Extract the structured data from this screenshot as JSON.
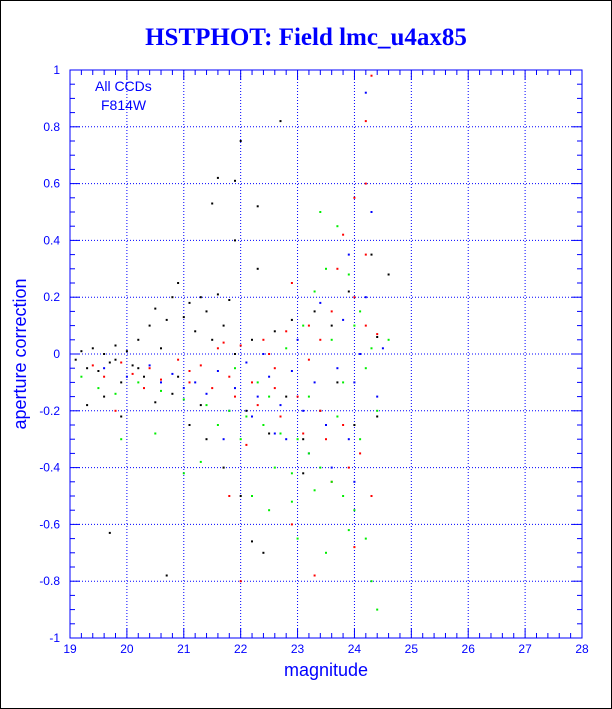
{
  "chart_data": {
    "type": "scatter",
    "title": "HSTPHOT: Field lmc_u4ax85",
    "xlabel": "magnitude",
    "ylabel": "aperture correction",
    "xlim": [
      19,
      28
    ],
    "ylim": [
      -1,
      1
    ],
    "x_ticks": [
      "19",
      "20",
      "21",
      "22",
      "23",
      "24",
      "25",
      "26",
      "27",
      "28"
    ],
    "y_ticks": [
      "-1",
      "-0.8",
      "-0.6",
      "-0.4",
      "-0.2",
      "0",
      "0.2",
      "0.4",
      "0.6",
      "0.8",
      "1"
    ],
    "x_tick_values": [
      19,
      20,
      21,
      22,
      23,
      24,
      25,
      26,
      27,
      28
    ],
    "y_tick_values": [
      -1,
      -0.8,
      -0.6,
      -0.4,
      -0.2,
      0,
      0.2,
      0.4,
      0.6,
      0.8,
      1
    ],
    "grid": true,
    "annotations": [
      "All CCDs",
      "F814W"
    ],
    "colors": {
      "axes": "#0000ff",
      "grid": "#0000ff",
      "black_series": "#000000",
      "red_series": "#ff0000",
      "blue_series": "#0000ff",
      "green_series": "#00ee00"
    },
    "series": [
      {
        "color": "#000000",
        "points": [
          [
            19.1,
            -0.02
          ],
          [
            19.2,
            0.01
          ],
          [
            19.3,
            -0.05
          ],
          [
            19.4,
            0.02
          ],
          [
            19.5,
            -0.06
          ],
          [
            19.6,
            0.0
          ],
          [
            19.7,
            -0.03
          ],
          [
            19.8,
            0.03
          ],
          [
            19.9,
            -0.1
          ],
          [
            20.0,
            0.01
          ],
          [
            20.1,
            -0.04
          ],
          [
            20.2,
            0.05
          ],
          [
            20.3,
            -0.08
          ],
          [
            20.4,
            0.1
          ],
          [
            20.5,
            0.16
          ],
          [
            20.6,
            0.02
          ],
          [
            20.7,
            0.12
          ],
          [
            20.8,
            0.2
          ],
          [
            20.9,
            0.25
          ],
          [
            21.0,
            0.13
          ],
          [
            21.1,
            0.18
          ],
          [
            21.2,
            0.08
          ],
          [
            21.3,
            0.2
          ],
          [
            21.4,
            0.15
          ],
          [
            21.5,
            0.05
          ],
          [
            21.6,
            0.21
          ],
          [
            21.7,
            0.1
          ],
          [
            21.8,
            0.19
          ],
          [
            21.9,
            0.0
          ],
          [
            19.3,
            -0.18
          ],
          [
            19.6,
            -0.15
          ],
          [
            19.9,
            -0.22
          ],
          [
            20.2,
            -0.05
          ],
          [
            20.5,
            -0.17
          ],
          [
            20.8,
            -0.14
          ],
          [
            21.1,
            -0.25
          ],
          [
            21.4,
            -0.3
          ],
          [
            21.7,
            -0.4
          ],
          [
            22.0,
            -0.5
          ],
          [
            22.2,
            -0.66
          ],
          [
            22.4,
            -0.7
          ],
          [
            19.7,
            -0.63
          ],
          [
            20.7,
            -0.78
          ],
          [
            21.5,
            0.53
          ],
          [
            21.6,
            0.62
          ],
          [
            21.9,
            0.61
          ],
          [
            22.0,
            0.75
          ],
          [
            22.3,
            0.52
          ],
          [
            22.7,
            0.82
          ],
          [
            21.9,
            0.4
          ],
          [
            22.3,
            0.3
          ],
          [
            22.6,
            0.08
          ],
          [
            22.9,
            0.12
          ],
          [
            23.3,
            0.15
          ],
          [
            23.6,
            0.1
          ],
          [
            23.9,
            0.22
          ],
          [
            22.1,
            -0.2
          ],
          [
            22.5,
            -0.28
          ],
          [
            22.8,
            -0.15
          ],
          [
            23.1,
            -0.3
          ],
          [
            23.4,
            -0.2
          ],
          [
            23.7,
            -0.1
          ],
          [
            24.0,
            -0.25
          ],
          [
            24.4,
            0.06
          ],
          [
            24.4,
            -0.22
          ],
          [
            24.6,
            0.28
          ],
          [
            24.3,
            0.35
          ],
          [
            23.1,
            -0.42
          ],
          [
            21.3,
            -0.18
          ],
          [
            22.2,
            0.05
          ],
          [
            20.9,
            -0.08
          ],
          [
            19.8,
            -0.02
          ]
        ]
      },
      {
        "color": "#ff0000",
        "points": [
          [
            19.4,
            -0.04
          ],
          [
            19.6,
            -0.08
          ],
          [
            19.9,
            -0.03
          ],
          [
            20.1,
            -0.07
          ],
          [
            20.4,
            -0.05
          ],
          [
            20.6,
            -0.09
          ],
          [
            20.9,
            -0.02
          ],
          [
            21.1,
            -0.06
          ],
          [
            21.3,
            -0.04
          ],
          [
            21.6,
            0.02
          ],
          [
            21.8,
            -0.08
          ],
          [
            22.0,
            0.03
          ],
          [
            22.2,
            -0.1
          ],
          [
            22.4,
            0.05
          ],
          [
            22.6,
            -0.12
          ],
          [
            22.8,
            0.08
          ],
          [
            23.0,
            -0.15
          ],
          [
            23.2,
            0.1
          ],
          [
            23.4,
            -0.2
          ],
          [
            23.6,
            0.15
          ],
          [
            23.8,
            -0.25
          ],
          [
            24.0,
            0.2
          ],
          [
            24.2,
            0.35
          ],
          [
            24.2,
            0.6
          ],
          [
            24.2,
            0.82
          ],
          [
            24.3,
            0.98
          ],
          [
            24.2,
            0.1
          ],
          [
            24.1,
            -0.35
          ],
          [
            24.3,
            -0.5
          ],
          [
            23.9,
            -0.4
          ],
          [
            23.5,
            -0.3
          ],
          [
            23.1,
            -0.28
          ],
          [
            22.7,
            -0.22
          ],
          [
            22.3,
            -0.18
          ],
          [
            21.9,
            -0.15
          ],
          [
            21.5,
            -0.12
          ],
          [
            21.1,
            -0.1
          ],
          [
            22.0,
            -0.8
          ],
          [
            21.8,
            -0.5
          ],
          [
            22.9,
            -0.6
          ],
          [
            23.3,
            -0.78
          ],
          [
            24.0,
            -0.68
          ],
          [
            23.7,
            0.3
          ],
          [
            23.4,
            0.05
          ],
          [
            22.9,
            0.25
          ],
          [
            23.8,
            0.42
          ],
          [
            24.0,
            0.55
          ],
          [
            23.2,
            -0.02
          ],
          [
            22.5,
            0.0
          ],
          [
            21.7,
            0.04
          ],
          [
            20.3,
            -0.12
          ],
          [
            19.8,
            -0.2
          ],
          [
            23.6,
            -0.45
          ],
          [
            24.4,
            0.07
          ],
          [
            22.1,
            -0.32
          ],
          [
            22.6,
            -0.05
          ]
        ]
      },
      {
        "color": "#0000ff",
        "points": [
          [
            19.6,
            -0.05
          ],
          [
            20.0,
            -0.08
          ],
          [
            20.4,
            -0.04
          ],
          [
            20.8,
            -0.07
          ],
          [
            21.2,
            -0.1
          ],
          [
            21.6,
            -0.06
          ],
          [
            21.9,
            -0.12
          ],
          [
            22.1,
            -0.03
          ],
          [
            22.3,
            -0.15
          ],
          [
            22.5,
            -0.08
          ],
          [
            22.7,
            -0.18
          ],
          [
            22.9,
            -0.06
          ],
          [
            23.1,
            -0.2
          ],
          [
            23.3,
            -0.1
          ],
          [
            23.5,
            -0.25
          ],
          [
            23.7,
            -0.05
          ],
          [
            23.9,
            -0.3
          ],
          [
            24.1,
            0.0
          ],
          [
            24.2,
            0.92
          ],
          [
            24.3,
            0.5
          ],
          [
            24.2,
            0.2
          ],
          [
            24.4,
            -0.15
          ],
          [
            24.0,
            -0.1
          ],
          [
            23.8,
            0.12
          ],
          [
            23.4,
            0.18
          ],
          [
            23.0,
            0.05
          ],
          [
            22.6,
            -0.28
          ],
          [
            22.2,
            -0.22
          ],
          [
            21.8,
            -0.2
          ],
          [
            21.4,
            -0.14
          ],
          [
            21.0,
            -0.12
          ],
          [
            20.6,
            -0.1
          ],
          [
            23.2,
            -0.35
          ],
          [
            23.6,
            -0.4
          ],
          [
            24.0,
            -0.45
          ],
          [
            22.8,
            -0.3
          ],
          [
            24.5,
            0.02
          ],
          [
            23.9,
            0.35
          ],
          [
            22.4,
            0.0
          ],
          [
            21.7,
            -0.3
          ]
        ]
      },
      {
        "color": "#00ee00",
        "points": [
          [
            19.2,
            -0.08
          ],
          [
            19.5,
            -0.12
          ],
          [
            19.8,
            -0.14
          ],
          [
            20.2,
            -0.1
          ],
          [
            20.6,
            -0.13
          ],
          [
            21.0,
            -0.16
          ],
          [
            21.4,
            -0.18
          ],
          [
            21.8,
            -0.2
          ],
          [
            22.1,
            -0.22
          ],
          [
            22.4,
            -0.25
          ],
          [
            22.7,
            -0.28
          ],
          [
            23.0,
            -0.3
          ],
          [
            23.2,
            -0.35
          ],
          [
            23.4,
            -0.4
          ],
          [
            23.6,
            -0.45
          ],
          [
            23.8,
            -0.5
          ],
          [
            24.0,
            -0.55
          ],
          [
            24.2,
            -0.65
          ],
          [
            24.3,
            -0.8
          ],
          [
            24.4,
            -0.9
          ],
          [
            22.2,
            -0.5
          ],
          [
            22.5,
            -0.55
          ],
          [
            22.9,
            -0.52
          ],
          [
            23.3,
            -0.48
          ],
          [
            23.1,
            0.1
          ],
          [
            23.3,
            0.22
          ],
          [
            23.5,
            0.3
          ],
          [
            23.4,
            0.5
          ],
          [
            23.7,
            0.45
          ],
          [
            23.9,
            0.28
          ],
          [
            24.0,
            0.1
          ],
          [
            24.2,
            -0.05
          ],
          [
            24.4,
            -0.2
          ],
          [
            24.6,
            0.05
          ],
          [
            22.8,
            0.02
          ],
          [
            22.5,
            -0.15
          ],
          [
            22.0,
            -0.3
          ],
          [
            21.6,
            -0.25
          ],
          [
            21.3,
            -0.38
          ],
          [
            21.0,
            -0.42
          ],
          [
            20.5,
            -0.28
          ],
          [
            19.9,
            -0.3
          ],
          [
            23.6,
            0.05
          ],
          [
            23.8,
            -0.1
          ],
          [
            24.1,
            -0.3
          ],
          [
            22.6,
            -0.4
          ],
          [
            23.0,
            -0.65
          ],
          [
            23.5,
            -0.7
          ],
          [
            23.9,
            -0.62
          ],
          [
            24.1,
            0.15
          ],
          [
            22.3,
            -0.1
          ],
          [
            21.9,
            -0.05
          ],
          [
            23.2,
            -0.15
          ],
          [
            23.7,
            -0.22
          ],
          [
            24.3,
            0.02
          ],
          [
            22.9,
            -0.42
          ]
        ]
      }
    ]
  }
}
